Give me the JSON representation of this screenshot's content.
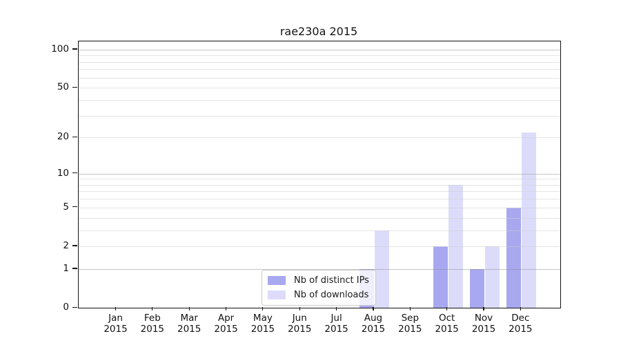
{
  "chart_data": {
    "type": "bar",
    "title": "rae230a 2015",
    "categories": [
      "Jan 2015",
      "Feb 2015",
      "Mar 2015",
      "Apr 2015",
      "May 2015",
      "Jun 2015",
      "Jul 2015",
      "Aug 2015",
      "Sep 2015",
      "Oct 2015",
      "Nov 2015",
      "Dec 2015"
    ],
    "series": [
      {
        "name": "Nb of distinct IPs",
        "color": "#a8a8f0",
        "values": [
          0,
          0,
          0,
          0,
          0,
          0,
          0,
          1,
          0,
          2,
          1,
          5
        ]
      },
      {
        "name": "Nb of downloads",
        "color": "#dcdcfa",
        "values": [
          0,
          0,
          0,
          0,
          0,
          0,
          0,
          3,
          0,
          8,
          2,
          22
        ]
      }
    ],
    "xlabel": "",
    "ylabel": "",
    "yscale": "log1p",
    "ylim": [
      0,
      116
    ],
    "yticks_labeled": [
      "0",
      "1",
      "2",
      "5",
      "10",
      "20",
      "50",
      "100"
    ],
    "ytick_values": [
      0,
      1,
      2,
      5,
      10,
      20,
      50,
      100
    ],
    "grid_major_values": [
      1,
      10,
      100
    ],
    "grid_minor_values": [
      2,
      3,
      4,
      5,
      6,
      7,
      8,
      9,
      20,
      30,
      40,
      50,
      60,
      70,
      80,
      90
    ],
    "grid": "horizontal major and minor",
    "legend_position": "inside bottom-center"
  }
}
